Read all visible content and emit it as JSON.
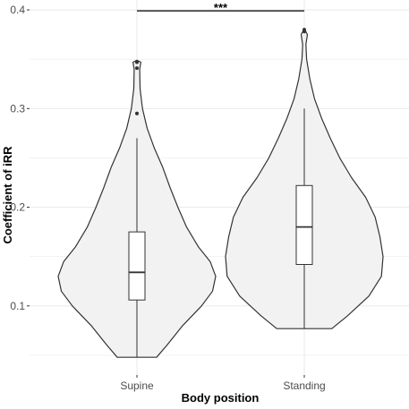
{
  "chart_data": {
    "type": "violin",
    "xlabel": "Body position",
    "ylabel": "Coefficient of iRR",
    "categories": [
      "Supine",
      "Standing"
    ],
    "ylim": [
      0.03,
      0.41
    ],
    "yticks": [
      0.1,
      0.2,
      0.3,
      0.4
    ],
    "ytick_labels": [
      "0.1",
      "0.2",
      "0.3",
      "0.4"
    ],
    "grid": true,
    "colors": {
      "violin_fill": "#f2f2f2",
      "outline": "#333333",
      "grid": "#ebebeb"
    },
    "series": [
      {
        "category": "Supine",
        "min": 0.048,
        "q1": 0.106,
        "median": 0.134,
        "q3": 0.175,
        "whisker_high": 0.27,
        "outliers": [
          0.295,
          0.341,
          0.347
        ],
        "density": [
          [
            0.048,
            0.25
          ],
          [
            0.06,
            0.38
          ],
          [
            0.08,
            0.58
          ],
          [
            0.1,
            0.82
          ],
          [
            0.115,
            0.96
          ],
          [
            0.13,
            1.0
          ],
          [
            0.145,
            0.93
          ],
          [
            0.16,
            0.78
          ],
          [
            0.18,
            0.63
          ],
          [
            0.2,
            0.52
          ],
          [
            0.22,
            0.42
          ],
          [
            0.24,
            0.33
          ],
          [
            0.26,
            0.22
          ],
          [
            0.28,
            0.13
          ],
          [
            0.3,
            0.07
          ],
          [
            0.32,
            0.04
          ],
          [
            0.34,
            0.035
          ],
          [
            0.347,
            0.05
          ],
          [
            0.349,
            0.0
          ]
        ]
      },
      {
        "category": "Standing",
        "min": 0.077,
        "q1": 0.142,
        "median": 0.18,
        "q3": 0.222,
        "whisker_high": 0.3,
        "outliers": [
          0.378,
          0.38
        ],
        "density": [
          [
            0.077,
            0.35
          ],
          [
            0.09,
            0.55
          ],
          [
            0.11,
            0.82
          ],
          [
            0.13,
            0.98
          ],
          [
            0.15,
            1.0
          ],
          [
            0.17,
            0.96
          ],
          [
            0.19,
            0.9
          ],
          [
            0.21,
            0.78
          ],
          [
            0.23,
            0.6
          ],
          [
            0.25,
            0.45
          ],
          [
            0.27,
            0.33
          ],
          [
            0.29,
            0.22
          ],
          [
            0.31,
            0.13
          ],
          [
            0.33,
            0.07
          ],
          [
            0.35,
            0.03
          ],
          [
            0.365,
            0.02
          ],
          [
            0.375,
            0.04
          ],
          [
            0.381,
            0.0
          ]
        ]
      }
    ],
    "significance": {
      "label": "***",
      "y": 0.399,
      "between": [
        "Supine",
        "Standing"
      ]
    }
  }
}
